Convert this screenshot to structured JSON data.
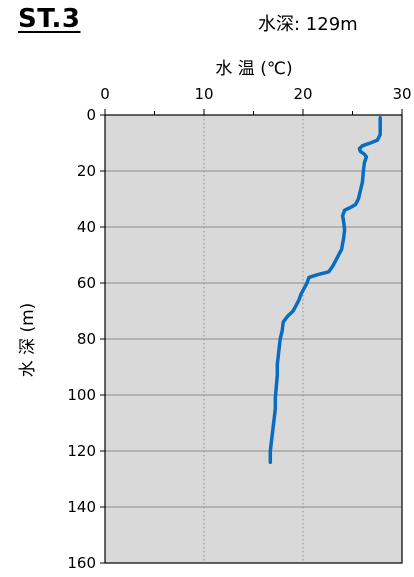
{
  "header": {
    "station": "ST.3",
    "depth_text": "水深: 129m"
  },
  "chart_data": {
    "type": "line",
    "xlabel": "水 温 (℃)",
    "ylabel": "水 深 (m)",
    "x_axis_position": "top",
    "y_inverted": true,
    "xlim": [
      0,
      30
    ],
    "ylim": [
      0,
      160
    ],
    "xticks": [
      0,
      10,
      20,
      30
    ],
    "yticks": [
      0,
      20,
      40,
      60,
      80,
      100,
      120,
      140,
      160
    ],
    "grid": {
      "vertical": "dotted",
      "horizontal": "solid"
    },
    "colors": {
      "line": "#0a6cc0",
      "plot_bg": "#d9d9d9",
      "grid_v": "#8c8c8c",
      "grid_h": "#6f6f6f"
    },
    "series": [
      {
        "points": [
          [
            27.8,
            1
          ],
          [
            27.8,
            4
          ],
          [
            27.8,
            7
          ],
          [
            27.5,
            9
          ],
          [
            26.8,
            10
          ],
          [
            26.0,
            11
          ],
          [
            25.7,
            12
          ],
          [
            25.8,
            13
          ],
          [
            26.2,
            14
          ],
          [
            26.4,
            15
          ],
          [
            26.2,
            17
          ],
          [
            26.1,
            20
          ],
          [
            26.0,
            24
          ],
          [
            25.8,
            27
          ],
          [
            25.6,
            30
          ],
          [
            25.3,
            32
          ],
          [
            24.8,
            33
          ],
          [
            24.2,
            34
          ],
          [
            24.0,
            36
          ],
          [
            24.1,
            38
          ],
          [
            24.2,
            41
          ],
          [
            24.1,
            44
          ],
          [
            24.0,
            46
          ],
          [
            23.9,
            48
          ],
          [
            23.6,
            50
          ],
          [
            23.3,
            52
          ],
          [
            23.0,
            54
          ],
          [
            22.6,
            56
          ],
          [
            21.5,
            57
          ],
          [
            20.6,
            58
          ],
          [
            20.4,
            60
          ],
          [
            20.1,
            62
          ],
          [
            19.8,
            64
          ],
          [
            19.6,
            66
          ],
          [
            19.3,
            68
          ],
          [
            19.0,
            70
          ],
          [
            18.4,
            72
          ],
          [
            18.0,
            74
          ],
          [
            17.9,
            77
          ],
          [
            17.7,
            80
          ],
          [
            17.6,
            83
          ],
          [
            17.5,
            86
          ],
          [
            17.4,
            89
          ],
          [
            17.4,
            93
          ],
          [
            17.3,
            97
          ],
          [
            17.2,
            101
          ],
          [
            17.2,
            105
          ],
          [
            17.1,
            108
          ],
          [
            17.0,
            111
          ],
          [
            16.9,
            114
          ],
          [
            16.8,
            117
          ],
          [
            16.7,
            120
          ],
          [
            16.7,
            124
          ]
        ]
      }
    ]
  }
}
